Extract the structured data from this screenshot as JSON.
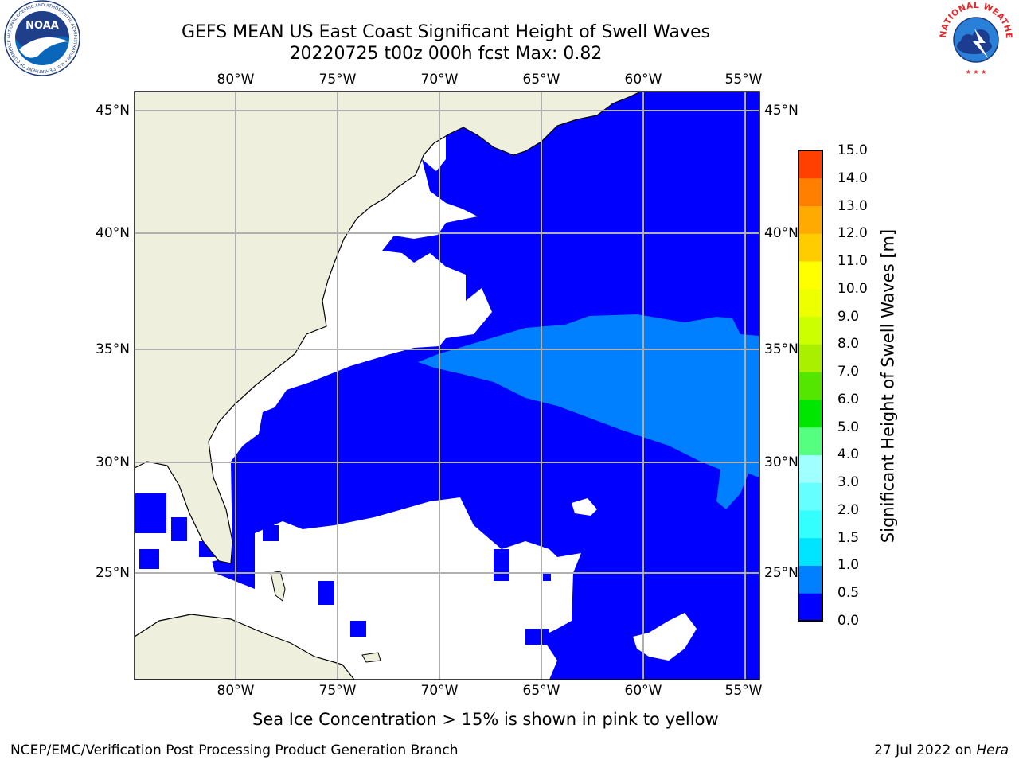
{
  "title": {
    "line1": "GEFS MEAN US East Coast Significant Height of Swell Waves",
    "line2": "20220725 t00z 000h fcst    Max: 0.82"
  },
  "map": {
    "lon_labels": [
      "80°W",
      "75°W",
      "70°W",
      "65°W",
      "60°W",
      "55°W"
    ],
    "lat_labels": [
      "45°N",
      "40°N",
      "35°N",
      "30°N",
      "25°N"
    ],
    "colors": {
      "land": "#efefdd",
      "ocean_low": "#0000ff",
      "ocean_swell": "#0080ff",
      "masked": "#ffffff",
      "grid": "#b0b0b0"
    }
  },
  "colorbar": {
    "label": "Significant Height of Swell Waves [m]",
    "ticks": [
      "0.0",
      "0.5",
      "1.0",
      "1.5",
      "2.0",
      "3.0",
      "4.0",
      "5.0",
      "6.0",
      "7.0",
      "8.0",
      "9.0",
      "10.0",
      "11.0",
      "12.0",
      "13.0",
      "14.0",
      "15.0"
    ],
    "colors": [
      "#0000ff",
      "#0080ff",
      "#00e5ff",
      "#33ffff",
      "#66ffff",
      "#a0ffff",
      "#55ff80",
      "#00e600",
      "#55e600",
      "#aaee00",
      "#ccff00",
      "#eeff00",
      "#ffff00",
      "#ffcc00",
      "#ffaa00",
      "#ff8000",
      "#ff4000",
      "#ff0000"
    ]
  },
  "note": "Sea Ice Concentration > 15% is shown in pink to yellow",
  "footer": {
    "left": "NCEP/EMC/Verification Post Processing Product Generation Branch",
    "right_date": "27 Jul 2022 on ",
    "right_machine": "Hera"
  },
  "logos": {
    "noaa": "NOAA",
    "noaa_ring": "NATIONAL OCEANIC AND ATMOSPHERIC ADMINISTRATION • U.S. DEPARTMENT OF COMMERCE",
    "nws_ring": "NATIONAL WEATHER SERVICE"
  }
}
